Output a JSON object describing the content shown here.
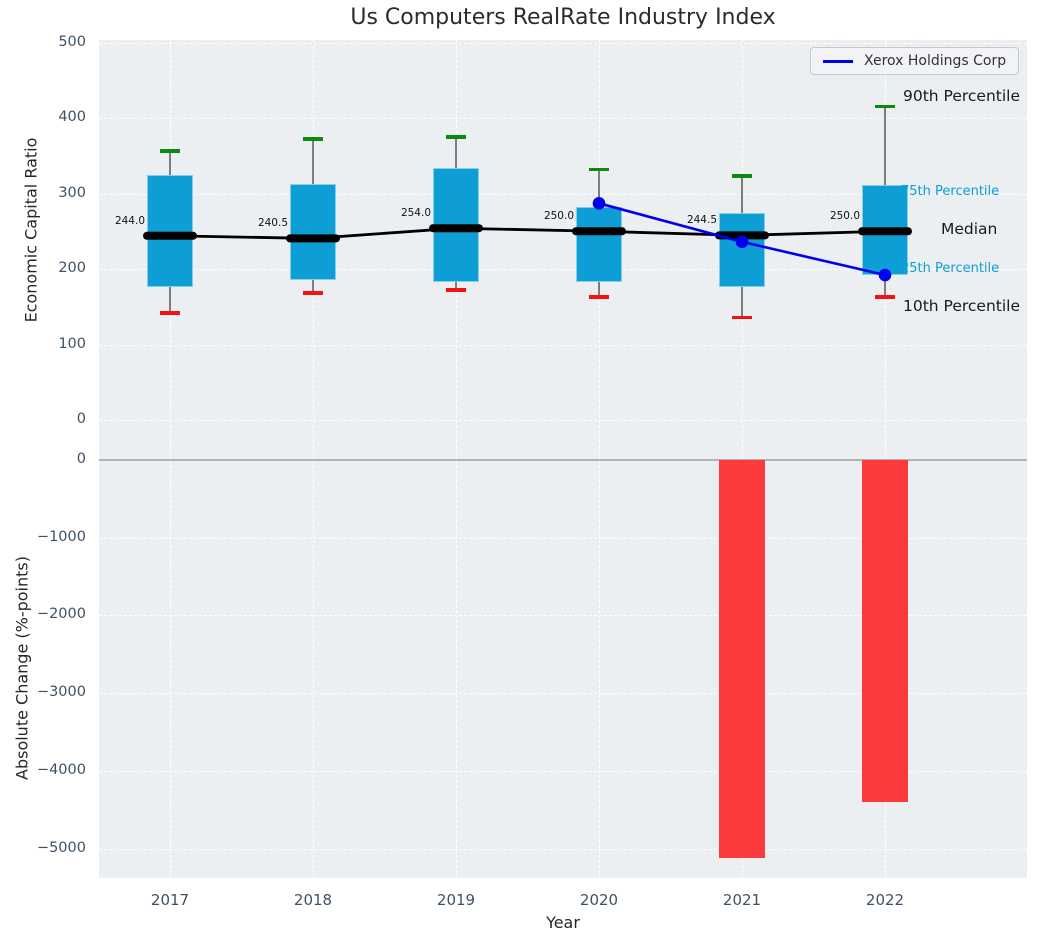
{
  "title": "Us Computers RealRate Industry Index",
  "legend": {
    "series_label": "Xerox Holdings Corp"
  },
  "annotations": {
    "p90": "90th Percentile",
    "p75": "75th Percentile",
    "median_label": "Median",
    "p25": "25th Percentile",
    "p10": "10th Percentile"
  },
  "axes": {
    "xlabel": "Year",
    "xticks": [
      "2017",
      "2018",
      "2019",
      "2020",
      "2021",
      "2022"
    ],
    "top": {
      "ylabel": "Economic Capital Ratio",
      "yticks": [
        "500",
        "400",
        "300",
        "200",
        "100",
        "0"
      ],
      "ytick_values": [
        500,
        400,
        300,
        200,
        100,
        0
      ]
    },
    "bottom": {
      "ylabel": "Absolute Change (%-points)",
      "yticks": [
        "0",
        "−1000",
        "−2000",
        "−3000",
        "−4000",
        "−5000"
      ],
      "ytick_values": [
        0,
        -1000,
        -2000,
        -3000,
        -4000,
        -5000
      ]
    }
  },
  "colors": {
    "box_fill": "#0d9ed6",
    "bar_fill": "#fb3b3b",
    "overlay_line": "#0000f0",
    "cap_top": "#0b8a10",
    "cap_bottom": "#f31111",
    "median": "#000000",
    "plot_bg": "#ebeff1",
    "grid": "#ffffff",
    "annotation_blue": "#0d9ed6"
  },
  "chart_data": [
    {
      "type": "boxplot",
      "title": "Us Computers RealRate Industry Index",
      "xlabel": "Year",
      "ylabel": "Economic Capital Ratio",
      "categories": [
        "2017",
        "2018",
        "2019",
        "2020",
        "2021",
        "2022"
      ],
      "ylim": [
        0,
        500
      ],
      "grid": true,
      "whisker_low_10th": [
        142,
        168,
        172,
        163,
        136,
        163
      ],
      "q1_25th": [
        176,
        185,
        183,
        183,
        176,
        192
      ],
      "median": [
        244.0,
        240.5,
        254.0,
        250.0,
        244.5,
        250.0
      ],
      "median_labels": [
        "244.0",
        "240.5",
        "254.0",
        "250.0",
        "244.5",
        "250.0"
      ],
      "q3_75th": [
        324,
        312,
        334,
        282,
        274,
        311
      ],
      "whisker_high_90th": [
        356,
        372,
        375,
        332,
        323,
        415
      ],
      "overlay_line": {
        "name": "Xerox Holdings Corp",
        "x": [
          "2020",
          "2021",
          "2022"
        ],
        "values": [
          287,
          236,
          192
        ]
      }
    },
    {
      "type": "bar",
      "xlabel": "Year",
      "ylabel": "Absolute Change (%-points)",
      "categories": [
        "2017",
        "2018",
        "2019",
        "2020",
        "2021",
        "2022"
      ],
      "ylim": [
        -5600,
        250
      ],
      "grid": true,
      "values": [
        null,
        null,
        null,
        null,
        -5120,
        -4400
      ]
    }
  ]
}
